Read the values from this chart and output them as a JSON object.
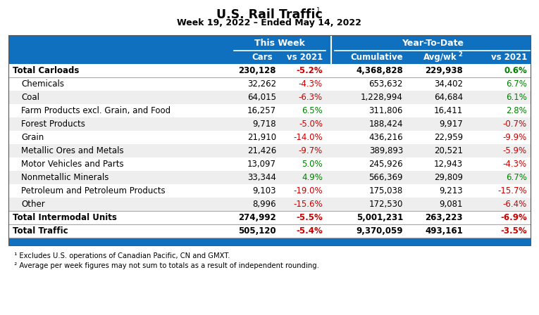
{
  "title": "U.S. Rail Traffic",
  "subtitle": "Week 19, 2022 – Ended May 14, 2022",
  "header_group1": "This Week",
  "header_group2": "Year-To-Date",
  "blue_color": "#1070C0",
  "green_color": "#008000",
  "red_color": "#CC0000",
  "white_color": "#FFFFFF",
  "black_color": "#000000",
  "light_gray": "#EFEFEF",
  "bg_color": "#FFFFFF",
  "rows": [
    {
      "label": "Total Carloads",
      "bold": true,
      "indent": false,
      "cars": "230,128",
      "vs_tw": "-5.2%",
      "cumul": "4,368,828",
      "avg": "229,938",
      "vs_ytd": "0.6%"
    },
    {
      "label": "Chemicals",
      "bold": false,
      "indent": true,
      "cars": "32,262",
      "vs_tw": "-4.3%",
      "cumul": "653,632",
      "avg": "34,402",
      "vs_ytd": "6.7%"
    },
    {
      "label": "Coal",
      "bold": false,
      "indent": true,
      "cars": "64,015",
      "vs_tw": "-6.3%",
      "cumul": "1,228,994",
      "avg": "64,684",
      "vs_ytd": "6.1%"
    },
    {
      "label": "Farm Products excl. Grain, and Food",
      "bold": false,
      "indent": true,
      "cars": "16,257",
      "vs_tw": "6.5%",
      "cumul": "311,806",
      "avg": "16,411",
      "vs_ytd": "2.8%"
    },
    {
      "label": "Forest Products",
      "bold": false,
      "indent": true,
      "cars": "9,718",
      "vs_tw": "-5.0%",
      "cumul": "188,424",
      "avg": "9,917",
      "vs_ytd": "-0.7%"
    },
    {
      "label": "Grain",
      "bold": false,
      "indent": true,
      "cars": "21,910",
      "vs_tw": "-14.0%",
      "cumul": "436,216",
      "avg": "22,959",
      "vs_ytd": "-9.9%"
    },
    {
      "label": "Metallic Ores and Metals",
      "bold": false,
      "indent": true,
      "cars": "21,426",
      "vs_tw": "-9.7%",
      "cumul": "389,893",
      "avg": "20,521",
      "vs_ytd": "-5.9%"
    },
    {
      "label": "Motor Vehicles and Parts",
      "bold": false,
      "indent": true,
      "cars": "13,097",
      "vs_tw": "5.0%",
      "cumul": "245,926",
      "avg": "12,943",
      "vs_ytd": "-4.3%"
    },
    {
      "label": "Nonmetallic Minerals",
      "bold": false,
      "indent": true,
      "cars": "33,344",
      "vs_tw": "4.9%",
      "cumul": "566,369",
      "avg": "29,809",
      "vs_ytd": "6.7%"
    },
    {
      "label": "Petroleum and Petroleum Products",
      "bold": false,
      "indent": true,
      "cars": "9,103",
      "vs_tw": "-19.0%",
      "cumul": "175,038",
      "avg": "9,213",
      "vs_ytd": "-15.7%"
    },
    {
      "label": "Other",
      "bold": false,
      "indent": true,
      "cars": "8,996",
      "vs_tw": "-15.6%",
      "cumul": "172,530",
      "avg": "9,081",
      "vs_ytd": "-6.4%"
    },
    {
      "label": "Total Intermodal Units",
      "bold": true,
      "indent": false,
      "cars": "274,992",
      "vs_tw": "-5.5%",
      "cumul": "5,001,231",
      "avg": "263,223",
      "vs_ytd": "-6.9%"
    },
    {
      "label": "Total Traffic",
      "bold": true,
      "indent": false,
      "cars": "505,120",
      "vs_tw": "-5.4%",
      "cumul": "9,370,059",
      "avg": "493,161",
      "vs_ytd": "-3.5%"
    }
  ],
  "row_bg_colors": [
    "#FFFFFF",
    "#FFFFFF",
    "#EEEEEE",
    "#FFFFFF",
    "#EEEEEE",
    "#FFFFFF",
    "#EEEEEE",
    "#FFFFFF",
    "#EEEEEE",
    "#FFFFFF",
    "#EEEEEE",
    "#FFFFFF",
    "#FFFFFF"
  ],
  "footnote1": "  ¹ Excludes U.S. operations of Canadian Pacific, CN and GMXT.",
  "footnote2": "  ² Average per week figures may not sum to totals as a result of independent rounding."
}
